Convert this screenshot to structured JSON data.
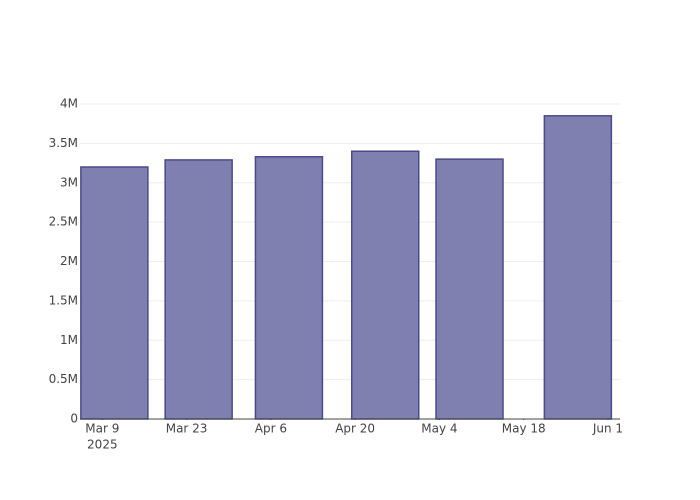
{
  "chart_data": {
    "type": "bar",
    "x": [
      "2025-03-11",
      "2025-03-25",
      "2025-04-09",
      "2025-04-25",
      "2025-05-09",
      "2025-05-27"
    ],
    "values": [
      3200000,
      3290000,
      3330000,
      3400000,
      3300000,
      3850000
    ],
    "color": "#7f7fb0",
    "edge_color": "#4a4a8c",
    "xlim": [
      "2025-03-05T07:00",
      "2025-06-03T00:00"
    ],
    "xticks": [
      {
        "value": "2025-03-09",
        "label": "Mar 9",
        "sublabel": "2025"
      },
      {
        "value": "2025-03-23",
        "label": "Mar 23"
      },
      {
        "value": "2025-04-06",
        "label": "Apr 6"
      },
      {
        "value": "2025-04-20",
        "label": "Apr 20"
      },
      {
        "value": "2025-05-04",
        "label": "May 4"
      },
      {
        "value": "2025-05-18",
        "label": "May 18"
      },
      {
        "value": "2025-06-01",
        "label": "Jun 1"
      }
    ],
    "ylim": [
      0,
      4000000
    ],
    "yticks": [
      0,
      {
        "value": 500000,
        "label": "0.5M"
      },
      {
        "value": 1000000,
        "label": "1M"
      },
      {
        "value": 1500000,
        "label": "1.5M"
      },
      {
        "value": 2000000,
        "label": "2M"
      },
      {
        "value": 2500000,
        "label": "2.5M"
      },
      {
        "value": 3000000,
        "label": "3M"
      },
      {
        "value": 3500000,
        "label": "3.5M"
      },
      {
        "value": 4000000,
        "label": "4M"
      }
    ],
    "grid": true
  }
}
